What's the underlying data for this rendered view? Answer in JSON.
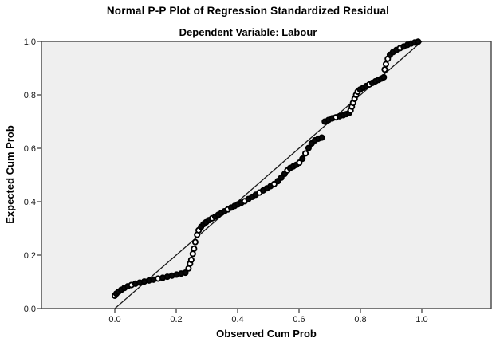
{
  "chart_data": {
    "type": "scatter",
    "title": "Normal P-P Plot of Regression Standardized Residual",
    "subtitle": "Dependent Variable: Labour",
    "xlabel": "Observed Cum Prob",
    "ylabel": "Expected Cum Prob",
    "xlim": [
      -0.239,
      1.226
    ],
    "ylim": [
      0.0,
      1.0
    ],
    "xticks": [
      0.0,
      0.2,
      0.4,
      0.6,
      0.8,
      1.0
    ],
    "yticks": [
      0.0,
      0.2,
      0.4,
      0.6,
      0.8,
      1.0
    ],
    "grid": false,
    "legend": "none",
    "plot_bg": "#efefef",
    "frame_color": "#454545",
    "marker": {
      "shape": "circle",
      "stroke": "#000000",
      "radius": 3.1,
      "stroke_width": 1.9,
      "open_fill": "#ffffff",
      "solid_fill": "#0a0a0a"
    },
    "reference_line": {
      "from": [
        0.0,
        0.0
      ],
      "to": [
        1.0,
        1.0
      ],
      "color": "#1a1a1a"
    },
    "series": [
      {
        "points": [
          [
            0.0,
            0.048,
            1
          ],
          [
            0.005,
            0.056,
            0
          ],
          [
            0.012,
            0.063,
            0
          ],
          [
            0.021,
            0.07,
            0
          ],
          [
            0.031,
            0.077,
            0
          ],
          [
            0.042,
            0.083,
            0
          ],
          [
            0.054,
            0.088,
            1
          ],
          [
            0.067,
            0.093,
            0
          ],
          [
            0.081,
            0.097,
            0
          ],
          [
            0.096,
            0.101,
            0
          ],
          [
            0.111,
            0.105,
            0
          ],
          [
            0.126,
            0.108,
            0
          ],
          [
            0.141,
            0.112,
            1
          ],
          [
            0.156,
            0.115,
            0
          ],
          [
            0.171,
            0.119,
            0
          ],
          [
            0.186,
            0.123,
            0
          ],
          [
            0.201,
            0.127,
            0
          ],
          [
            0.216,
            0.131,
            0
          ],
          [
            0.23,
            0.134,
            0
          ],
          [
            0.24,
            0.15,
            1
          ],
          [
            0.245,
            0.168,
            1
          ],
          [
            0.249,
            0.182,
            1
          ],
          [
            0.254,
            0.205,
            1
          ],
          [
            0.258,
            0.224,
            1
          ],
          [
            0.262,
            0.249,
            1
          ],
          [
            0.268,
            0.276,
            1
          ],
          [
            0.273,
            0.293,
            1
          ],
          [
            0.281,
            0.306,
            0
          ],
          [
            0.289,
            0.316,
            0
          ],
          [
            0.297,
            0.323,
            0
          ],
          [
            0.307,
            0.331,
            0
          ],
          [
            0.317,
            0.338,
            1
          ],
          [
            0.327,
            0.344,
            0
          ],
          [
            0.337,
            0.351,
            0
          ],
          [
            0.347,
            0.358,
            0
          ],
          [
            0.357,
            0.364,
            0
          ],
          [
            0.368,
            0.371,
            1
          ],
          [
            0.379,
            0.378,
            0
          ],
          [
            0.39,
            0.384,
            0
          ],
          [
            0.401,
            0.39,
            0
          ],
          [
            0.412,
            0.396,
            0
          ],
          [
            0.423,
            0.402,
            1
          ],
          [
            0.435,
            0.41,
            0
          ],
          [
            0.447,
            0.418,
            0
          ],
          [
            0.459,
            0.426,
            0
          ],
          [
            0.471,
            0.434,
            1
          ],
          [
            0.483,
            0.442,
            0
          ],
          [
            0.495,
            0.45,
            0
          ],
          [
            0.507,
            0.458,
            0
          ],
          [
            0.519,
            0.466,
            1
          ],
          [
            0.531,
            0.477,
            0
          ],
          [
            0.542,
            0.49,
            0
          ],
          [
            0.553,
            0.504,
            0
          ],
          [
            0.562,
            0.517,
            1
          ],
          [
            0.571,
            0.526,
            0
          ],
          [
            0.581,
            0.532,
            0
          ],
          [
            0.591,
            0.538,
            0
          ],
          [
            0.601,
            0.546,
            1
          ],
          [
            0.611,
            0.561,
            0
          ],
          [
            0.621,
            0.581,
            1
          ],
          [
            0.631,
            0.601,
            0
          ],
          [
            0.641,
            0.618,
            0
          ],
          [
            0.652,
            0.63,
            0
          ],
          [
            0.663,
            0.636,
            0
          ],
          [
            0.674,
            0.64,
            0
          ],
          [
            0.684,
            0.7,
            0
          ],
          [
            0.696,
            0.706,
            0
          ],
          [
            0.708,
            0.712,
            0
          ],
          [
            0.72,
            0.716,
            1
          ],
          [
            0.732,
            0.72,
            0
          ],
          [
            0.744,
            0.724,
            0
          ],
          [
            0.754,
            0.728,
            0
          ],
          [
            0.763,
            0.732,
            0
          ],
          [
            0.768,
            0.742,
            1
          ],
          [
            0.772,
            0.756,
            1
          ],
          [
            0.776,
            0.77,
            1
          ],
          [
            0.781,
            0.785,
            1
          ],
          [
            0.786,
            0.8,
            1
          ],
          [
            0.791,
            0.812,
            1
          ],
          [
            0.799,
            0.82,
            0
          ],
          [
            0.809,
            0.827,
            0
          ],
          [
            0.819,
            0.833,
            0
          ],
          [
            0.829,
            0.839,
            1
          ],
          [
            0.839,
            0.845,
            0
          ],
          [
            0.849,
            0.851,
            0
          ],
          [
            0.859,
            0.856,
            0
          ],
          [
            0.868,
            0.861,
            0
          ],
          [
            0.876,
            0.866,
            0
          ],
          [
            0.879,
            0.895,
            1
          ],
          [
            0.883,
            0.915,
            1
          ],
          [
            0.889,
            0.935,
            1
          ],
          [
            0.896,
            0.95,
            0
          ],
          [
            0.906,
            0.96,
            0
          ],
          [
            0.917,
            0.968,
            0
          ],
          [
            0.929,
            0.975,
            1
          ],
          [
            0.941,
            0.981,
            0
          ],
          [
            0.953,
            0.987,
            0
          ],
          [
            0.965,
            0.992,
            0
          ],
          [
            0.977,
            0.996,
            0
          ],
          [
            0.988,
            0.999,
            0
          ]
        ]
      }
    ]
  }
}
